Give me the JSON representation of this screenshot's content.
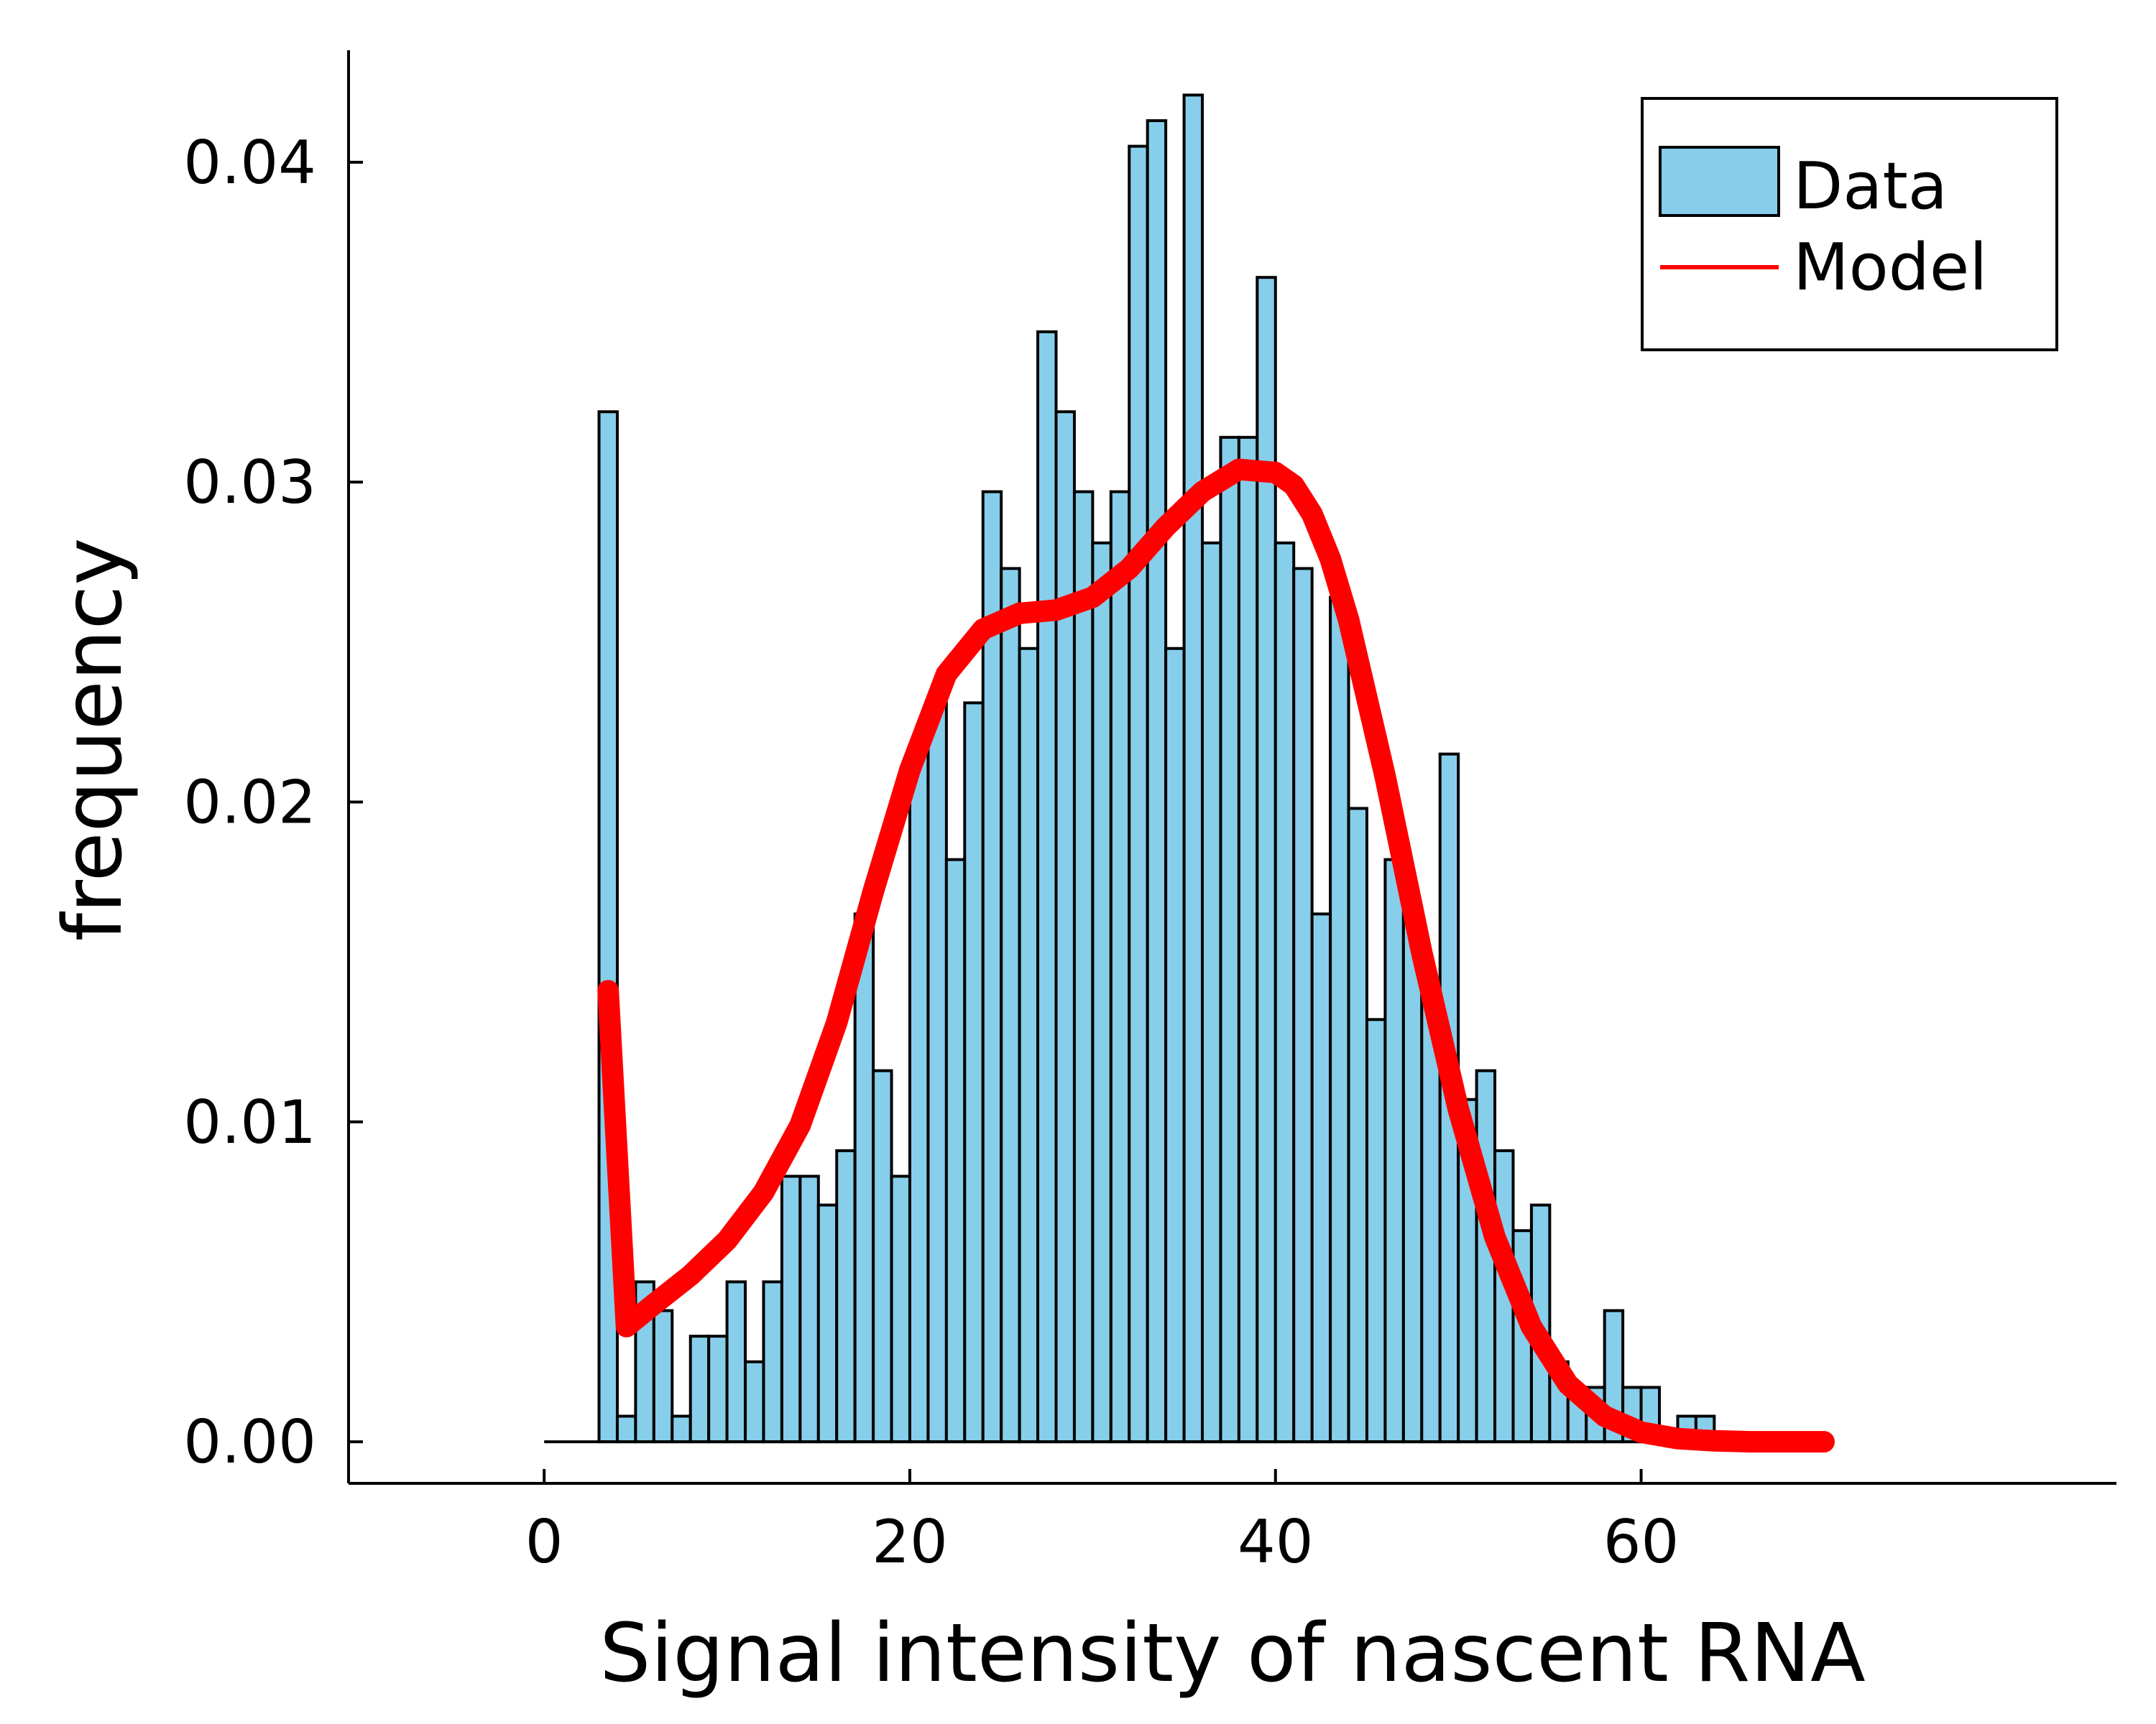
{
  "chart_data": {
    "type": "bar",
    "xlabel": "Signal intensity of nascent RNA",
    "ylabel": "frequency",
    "xlim": [
      -10.7,
      86
    ],
    "ylim": [
      -0.0013,
      0.0435
    ],
    "xticks": [
      0,
      20,
      40,
      60
    ],
    "yticks": [
      0.0,
      0.01,
      0.02,
      0.03,
      0.04
    ],
    "ytick_labels": [
      "0.00",
      "0.01",
      "0.02",
      "0.03",
      "0.04"
    ],
    "bin_width": 1,
    "grid": false,
    "legend": {
      "position": "top-right"
    },
    "colors": {
      "bars": "#87CEEB",
      "bar_edge": "#000000",
      "model": "#ff0000"
    },
    "series": [
      {
        "name": "Data",
        "kind": "histogram",
        "bins": [
          [
            3,
            0.0322
          ],
          [
            4,
            0.0008
          ],
          [
            5,
            0.005
          ],
          [
            6,
            0.0041
          ],
          [
            7,
            0.0008
          ],
          [
            8,
            0.0033
          ],
          [
            9,
            0.0033
          ],
          [
            10,
            0.005
          ],
          [
            11,
            0.0025
          ],
          [
            12,
            0.005
          ],
          [
            13,
            0.0083
          ],
          [
            14,
            0.0083
          ],
          [
            15,
            0.0074
          ],
          [
            16,
            0.0091
          ],
          [
            17,
            0.0165
          ],
          [
            18,
            0.0116
          ],
          [
            19,
            0.0083
          ],
          [
            20,
            0.0215
          ],
          [
            21,
            0.0231
          ],
          [
            22,
            0.0182
          ],
          [
            23,
            0.0231
          ],
          [
            24,
            0.0297
          ],
          [
            25,
            0.0273
          ],
          [
            26,
            0.0248
          ],
          [
            27,
            0.0347
          ],
          [
            28,
            0.0322
          ],
          [
            29,
            0.0297
          ],
          [
            30,
            0.0281
          ],
          [
            31,
            0.0297
          ],
          [
            32,
            0.0405
          ],
          [
            33,
            0.0413
          ],
          [
            34,
            0.0248
          ],
          [
            35,
            0.0421
          ],
          [
            36,
            0.0281
          ],
          [
            37,
            0.0314
          ],
          [
            38,
            0.0314
          ],
          [
            39,
            0.0364
          ],
          [
            40,
            0.0281
          ],
          [
            41,
            0.0273
          ],
          [
            42,
            0.0165
          ],
          [
            43,
            0.0264
          ],
          [
            44,
            0.0198
          ],
          [
            45,
            0.0132
          ],
          [
            46,
            0.0182
          ],
          [
            47,
            0.0165
          ],
          [
            48,
            0.014
          ],
          [
            49,
            0.0215
          ],
          [
            50,
            0.0107
          ],
          [
            51,
            0.0116
          ],
          [
            52,
            0.0091
          ],
          [
            53,
            0.0066
          ],
          [
            54,
            0.0074
          ],
          [
            55,
            0.0025
          ],
          [
            56,
            0.0017
          ],
          [
            57,
            0.0017
          ],
          [
            58,
            0.0041
          ],
          [
            59,
            0.0017
          ],
          [
            60,
            0.0017
          ],
          [
            61,
            0.0
          ],
          [
            62,
            0.0008
          ],
          [
            63,
            0.0008
          ]
        ]
      },
      {
        "name": "Model",
        "kind": "line",
        "points": [
          [
            3.5,
            0.0141
          ],
          [
            4.5,
            0.0036
          ],
          [
            6,
            0.0043
          ],
          [
            8,
            0.0052
          ],
          [
            10,
            0.0063
          ],
          [
            12,
            0.0078
          ],
          [
            14,
            0.0099
          ],
          [
            16,
            0.0131
          ],
          [
            18,
            0.0172
          ],
          [
            20,
            0.021
          ],
          [
            22,
            0.024
          ],
          [
            24,
            0.0254
          ],
          [
            26,
            0.0259
          ],
          [
            28,
            0.026
          ],
          [
            30,
            0.0264
          ],
          [
            32,
            0.0273
          ],
          [
            34,
            0.0286
          ],
          [
            36,
            0.0297
          ],
          [
            38,
            0.0304
          ],
          [
            40,
            0.0303
          ],
          [
            41,
            0.0299
          ],
          [
            42,
            0.029
          ],
          [
            43,
            0.0276
          ],
          [
            44,
            0.0257
          ],
          [
            46,
            0.0208
          ],
          [
            48,
            0.0153
          ],
          [
            50,
            0.0104
          ],
          [
            52,
            0.0064
          ],
          [
            54,
            0.0036
          ],
          [
            56,
            0.0018
          ],
          [
            58,
            0.0008
          ],
          [
            60,
            0.0003
          ],
          [
            62,
            0.0001
          ],
          [
            64,
            3e-05
          ],
          [
            66,
            0.0
          ],
          [
            70,
            0.0
          ]
        ]
      }
    ]
  }
}
